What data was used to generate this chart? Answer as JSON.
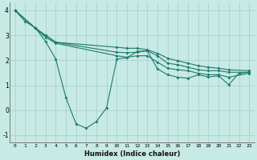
{
  "xlabel": "Humidex (Indice chaleur)",
  "bg_color": "#c8eae4",
  "grid_color": "#a0cdc5",
  "line_color": "#1e7a6d",
  "xlim": [
    -0.5,
    23.5
  ],
  "ylim": [
    -1.3,
    4.3
  ],
  "xticks": [
    0,
    1,
    2,
    3,
    4,
    5,
    6,
    7,
    8,
    9,
    10,
    11,
    12,
    13,
    14,
    15,
    16,
    17,
    18,
    19,
    20,
    21,
    22,
    23
  ],
  "yticks": [
    -1,
    0,
    1,
    2,
    3,
    4
  ],
  "line1_x": [
    0,
    1,
    2,
    3,
    4,
    5,
    6,
    7,
    8,
    9,
    10,
    11,
    12,
    13,
    14,
    15,
    16,
    17,
    18,
    19,
    20,
    21,
    22,
    23
  ],
  "line1_y": [
    4.0,
    3.55,
    3.3,
    2.75,
    2.05,
    0.5,
    -0.55,
    -0.72,
    -0.45,
    0.1,
    2.05,
    2.1,
    2.35,
    2.38,
    1.65,
    1.42,
    1.32,
    1.28,
    1.42,
    1.33,
    1.38,
    1.02,
    1.48,
    1.52
  ],
  "line2_x": [
    0,
    2,
    3,
    4,
    10,
    11,
    12,
    13,
    14,
    15,
    16,
    17,
    18,
    19,
    20,
    21,
    23
  ],
  "line2_y": [
    4.0,
    3.28,
    3.0,
    2.72,
    2.32,
    2.3,
    2.32,
    2.38,
    2.18,
    1.88,
    1.82,
    1.72,
    1.62,
    1.58,
    1.58,
    1.52,
    1.52
  ],
  "line3_x": [
    0,
    2,
    3,
    4,
    10,
    11,
    12,
    13,
    14,
    15,
    16,
    17,
    18,
    19,
    20,
    21,
    23
  ],
  "line3_y": [
    4.0,
    3.28,
    3.0,
    2.72,
    2.52,
    2.48,
    2.48,
    2.42,
    2.28,
    2.08,
    1.98,
    1.88,
    1.78,
    1.72,
    1.68,
    1.62,
    1.58
  ],
  "line4_x": [
    0,
    2,
    3,
    4,
    10,
    11,
    12,
    13,
    14,
    15,
    16,
    17,
    18,
    19,
    20,
    21,
    23
  ],
  "line4_y": [
    4.0,
    3.28,
    2.92,
    2.68,
    2.18,
    2.12,
    2.18,
    2.18,
    1.92,
    1.68,
    1.62,
    1.58,
    1.48,
    1.42,
    1.42,
    1.32,
    1.48
  ]
}
